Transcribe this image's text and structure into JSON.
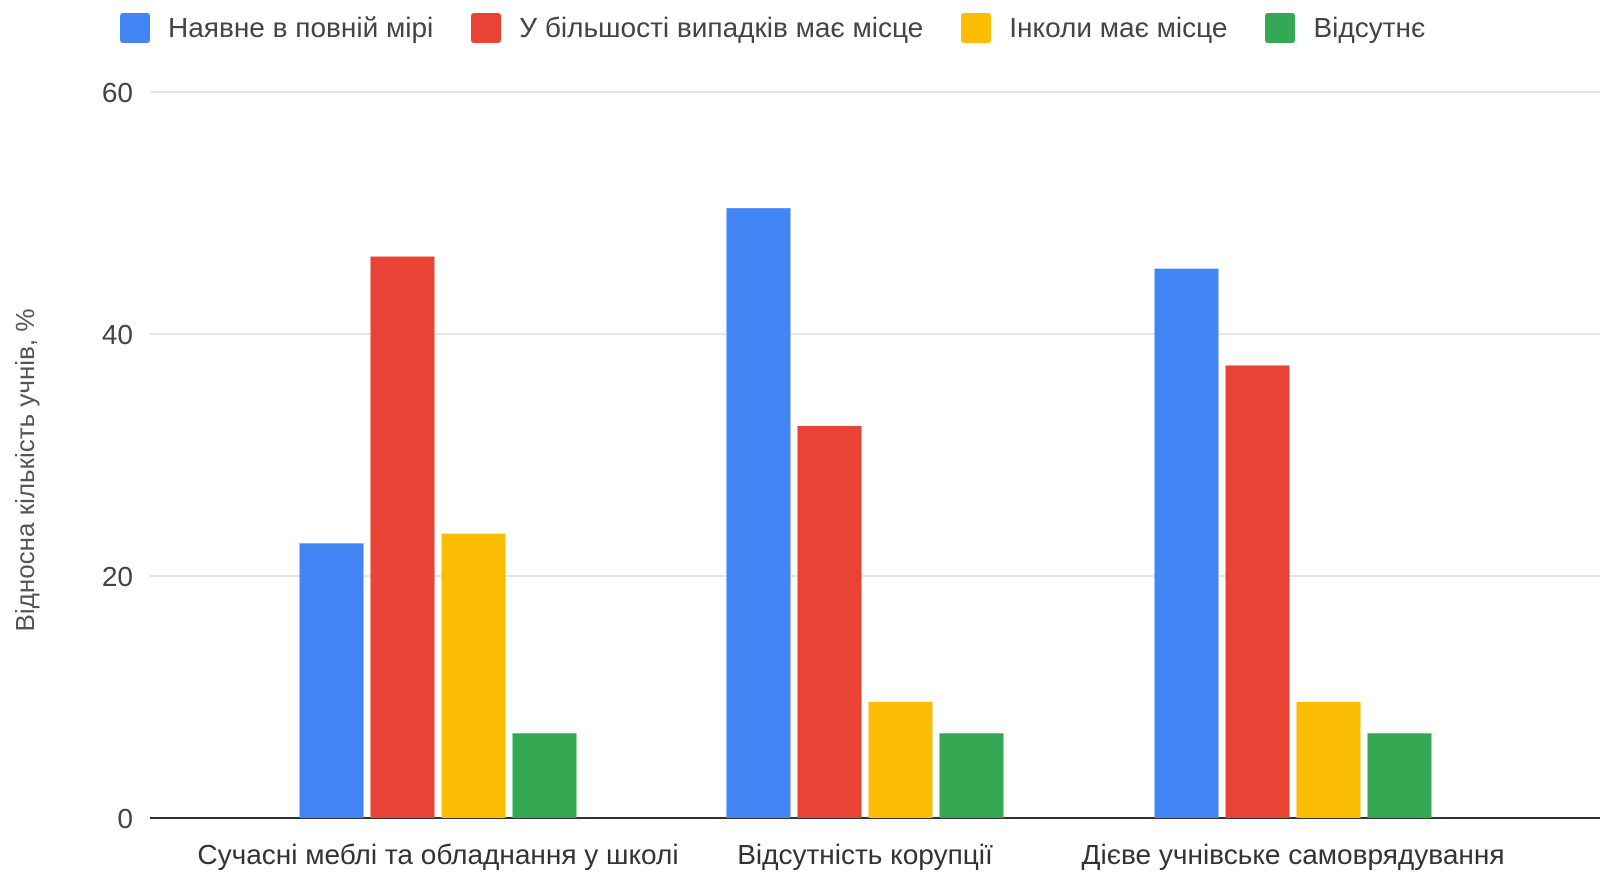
{
  "chart_data": {
    "type": "bar",
    "categories": [
      "Сучасні меблі та обладнання у школі",
      "Відсутність корупції",
      "Дієве учнівське самоврядування"
    ],
    "series": [
      {
        "name": "Наявне в повній мірі",
        "color": "#4285f4",
        "values": [
          22.7,
          50.4,
          45.4
        ]
      },
      {
        "name": "У більшості випадків має місце",
        "color": "#ea4335",
        "values": [
          46.4,
          32.4,
          37.4
        ]
      },
      {
        "name": "Інколи має місце",
        "color": "#fbbc04",
        "values": [
          23.5,
          9.6,
          9.6
        ]
      },
      {
        "name": "Відсутнє",
        "color": "#34a853",
        "values": [
          7.0,
          7.0,
          7.0
        ]
      }
    ],
    "title": "",
    "xlabel": "",
    "ylabel": "Відносна кількість учнів, %",
    "ylim": [
      0,
      60
    ],
    "yticks": [
      "0",
      "20",
      "40",
      "60"
    ],
    "grid": true,
    "legend_position": "top"
  }
}
